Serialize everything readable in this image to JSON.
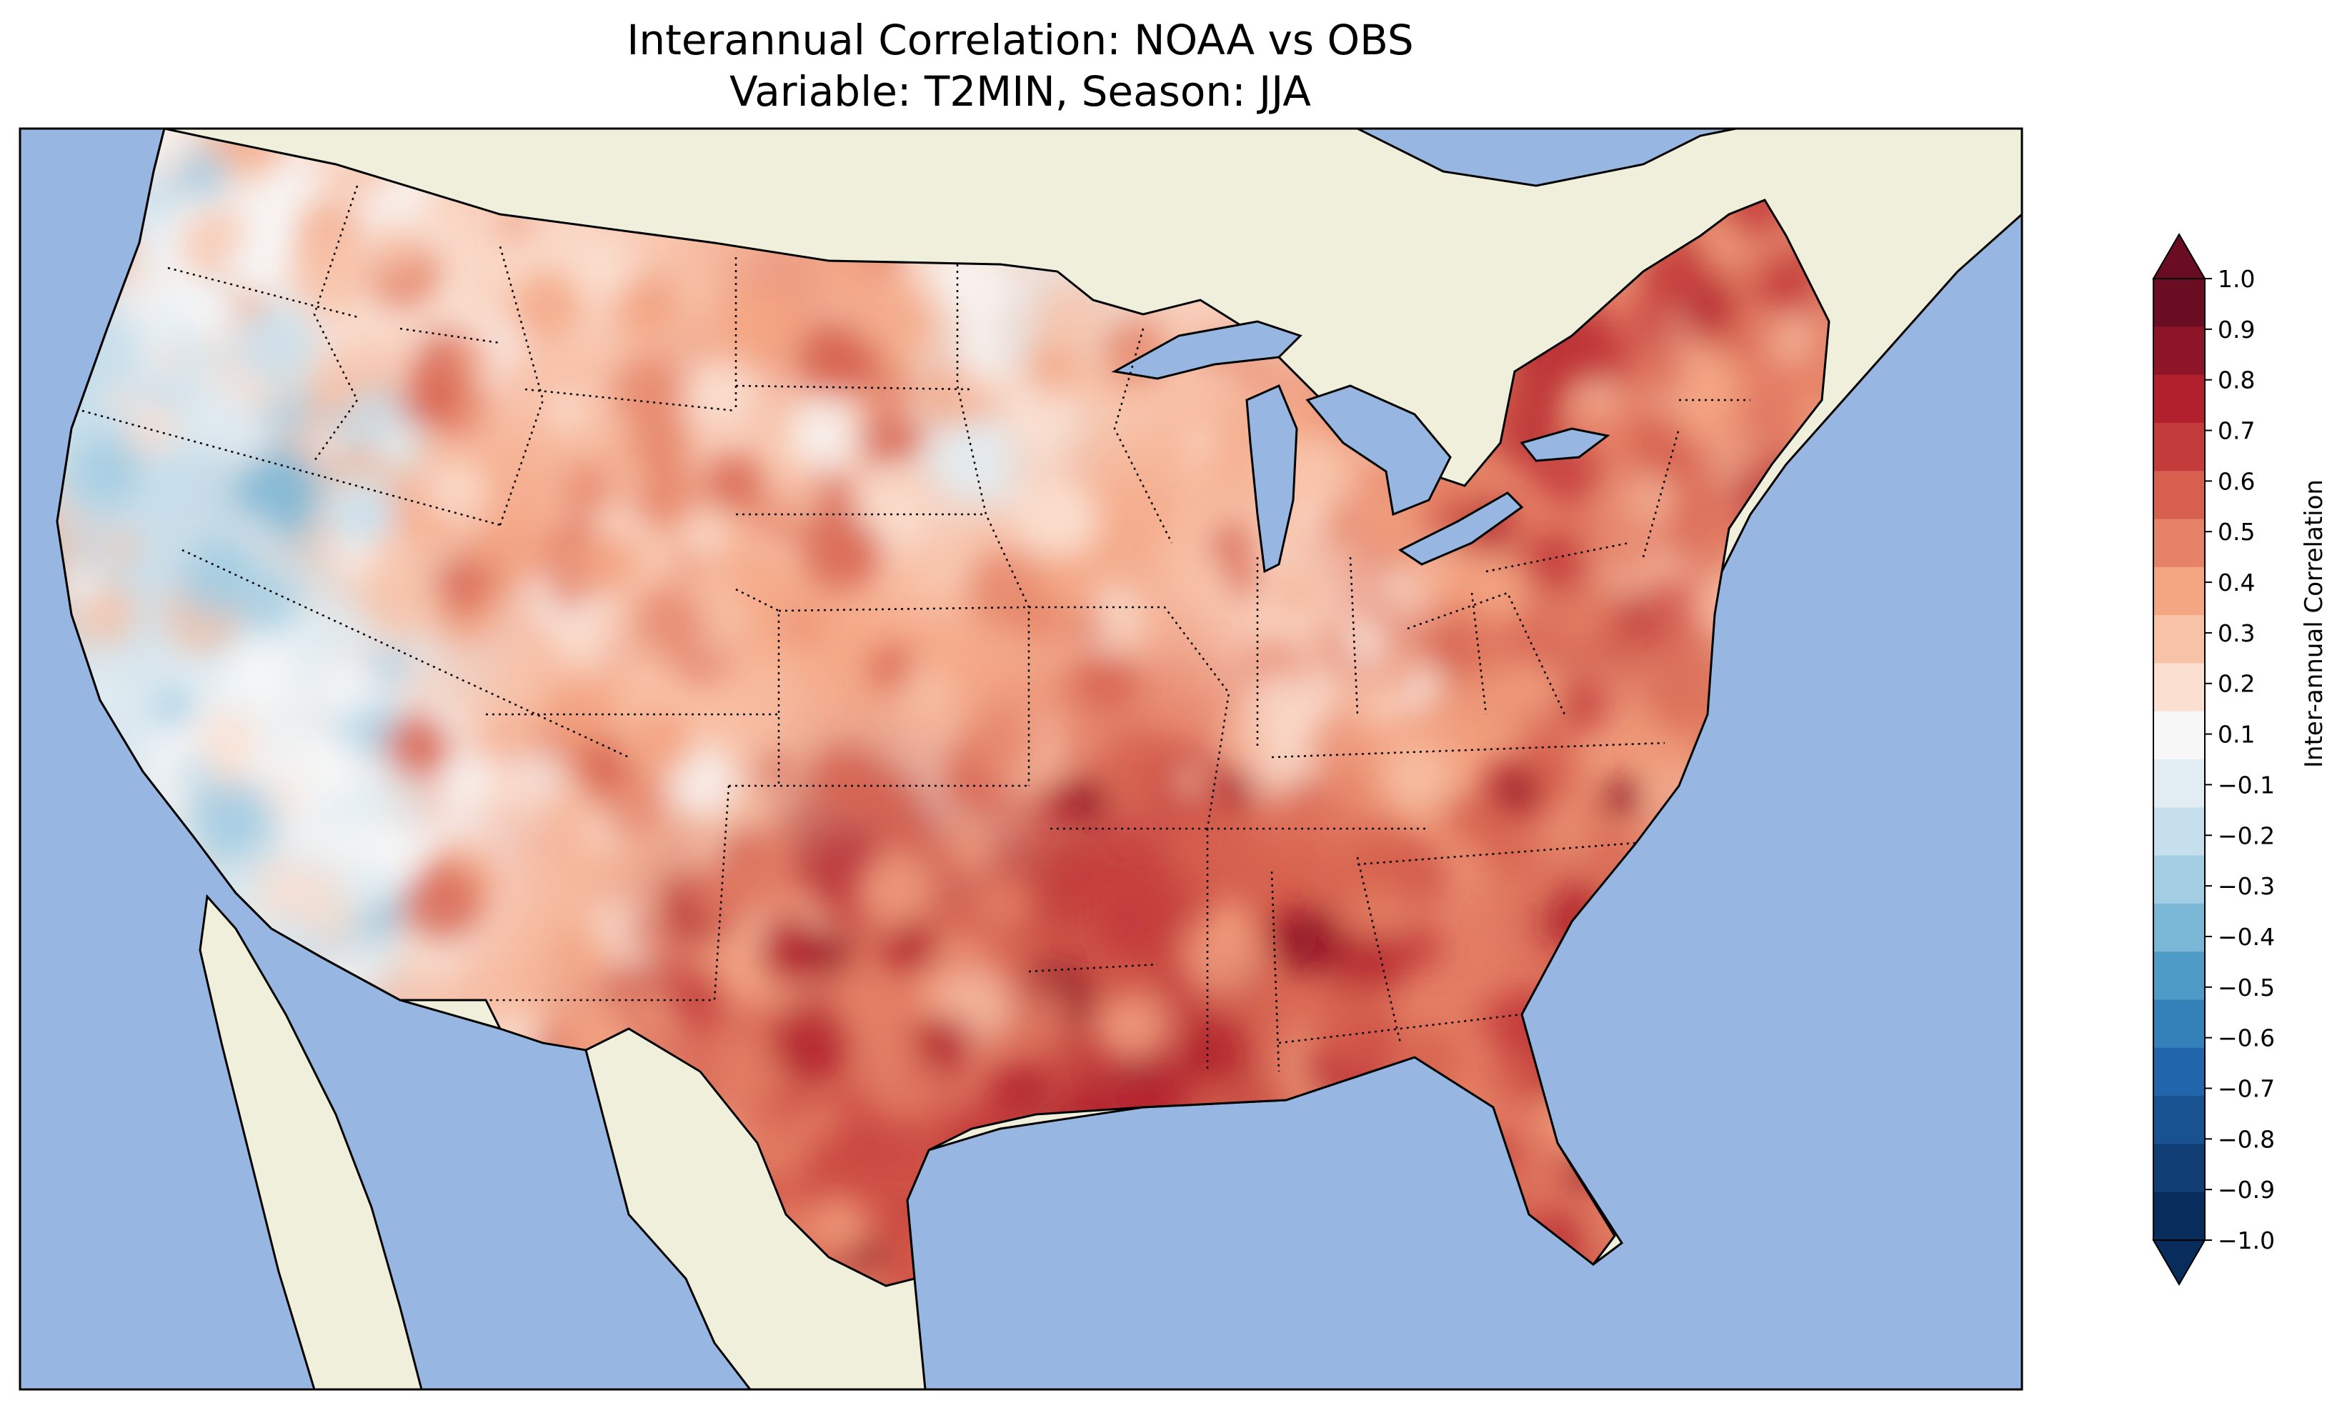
{
  "title": {
    "line1": "Interannual Correlation: NOAA vs OBS",
    "line2": "Variable: T2MIN, Season: JJA"
  },
  "map": {
    "ocean_color": "#97b6e1",
    "land_color": "#efefdb",
    "lake_color": "#97b6e1"
  },
  "colorbar": {
    "label": "Inter-annual Correlation",
    "ticks": [
      "1.0",
      "0.9",
      "0.8",
      "0.7",
      "0.6",
      "0.5",
      "0.4",
      "0.3",
      "0.2",
      "0.1",
      "−0.1",
      "−0.2",
      "−0.3",
      "−0.4",
      "−0.5",
      "−0.6",
      "−0.7",
      "−0.8",
      "−0.9",
      "−1.0"
    ],
    "colors": [
      "#6b0d22",
      "#8e1428",
      "#b2202d",
      "#c43b3c",
      "#d6604d",
      "#e58267",
      "#f4a582",
      "#f8c2a7",
      "#fbe0d1",
      "#f7f7f7",
      "#e1edf3",
      "#c6dfec",
      "#a2cde3",
      "#7ab6d6",
      "#4f9bc7",
      "#3480b9",
      "#2166ac",
      "#185291",
      "#0f3d74",
      "#082c5c"
    ]
  },
  "chart_data": {
    "type": "heatmap",
    "variable": "T2MIN",
    "season": "JJA",
    "colorbar_range": [
      -1.0,
      1.0
    ],
    "colorbar_step": 0.1,
    "extend": "both"
  }
}
